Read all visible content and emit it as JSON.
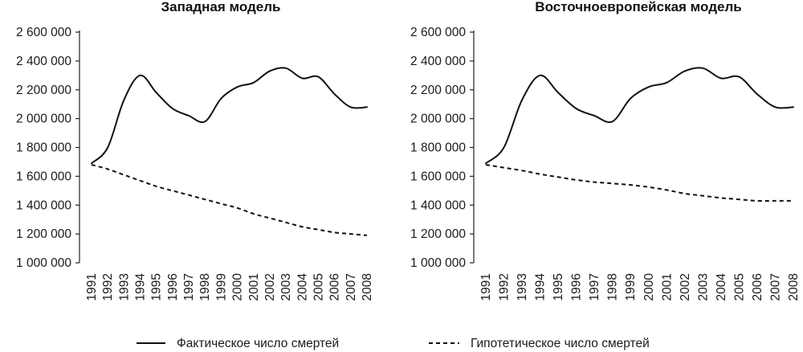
{
  "chart_data": [
    {
      "type": "line",
      "title": "Западная модель",
      "xlabel": "",
      "ylabel": "",
      "x": [
        1991,
        1992,
        1993,
        1994,
        1995,
        1996,
        1997,
        1998,
        1999,
        2000,
        2001,
        2002,
        2003,
        2004,
        2005,
        2006,
        2007,
        2008
      ],
      "ylim": [
        1000000,
        2600000
      ],
      "yticks": [
        "1 000 000",
        "1 200 000",
        "1 400 000",
        "1 600 000",
        "1 800 000",
        "2 000 000",
        "2 200 000",
        "2 400 000",
        "2 600 000"
      ],
      "series": [
        {
          "name": "Фактическое число смертей",
          "style": "solid",
          "values": [
            1690000,
            1800000,
            2130000,
            2300000,
            2180000,
            2070000,
            2020000,
            1980000,
            2140000,
            2220000,
            2250000,
            2330000,
            2350000,
            2280000,
            2290000,
            2170000,
            2080000,
            2080000
          ]
        },
        {
          "name": "Гипотетическое число смертей",
          "style": "dashed",
          "values": [
            1680000,
            1650000,
            1610000,
            1570000,
            1530000,
            1500000,
            1470000,
            1440000,
            1410000,
            1380000,
            1340000,
            1310000,
            1280000,
            1250000,
            1230000,
            1210000,
            1200000,
            1190000
          ]
        }
      ],
      "grid": false
    },
    {
      "type": "line",
      "title": "Восточноевропейская модель",
      "xlabel": "",
      "ylabel": "",
      "x": [
        1991,
        1992,
        1993,
        1994,
        1995,
        1996,
        1997,
        1998,
        1999,
        2000,
        2001,
        2002,
        2003,
        2004,
        2005,
        2006,
        2007,
        2008
      ],
      "ylim": [
        1000000,
        2600000
      ],
      "yticks": [
        "1 000 000",
        "1 200 000",
        "1 400 000",
        "1 600 000",
        "1 800 000",
        "2 000 000",
        "2 200 000",
        "2 400 000",
        "2 600 000"
      ],
      "series": [
        {
          "name": "Фактическое число смертей",
          "style": "solid",
          "values": [
            1690000,
            1800000,
            2130000,
            2300000,
            2180000,
            2070000,
            2020000,
            1980000,
            2140000,
            2220000,
            2250000,
            2330000,
            2350000,
            2280000,
            2290000,
            2170000,
            2080000,
            2080000
          ]
        },
        {
          "name": "Гипотетическое число смертей",
          "style": "dashed",
          "values": [
            1680000,
            1660000,
            1640000,
            1615000,
            1595000,
            1575000,
            1560000,
            1550000,
            1540000,
            1525000,
            1505000,
            1480000,
            1465000,
            1450000,
            1440000,
            1430000,
            1430000,
            1430000
          ]
        }
      ],
      "grid": false
    }
  ],
  "legend": {
    "placement": "bottom",
    "items": [
      {
        "label": "Фактическое число смертей",
        "style": "solid"
      },
      {
        "label": "Гипотетическое число смертей",
        "style": "dashed"
      }
    ]
  }
}
